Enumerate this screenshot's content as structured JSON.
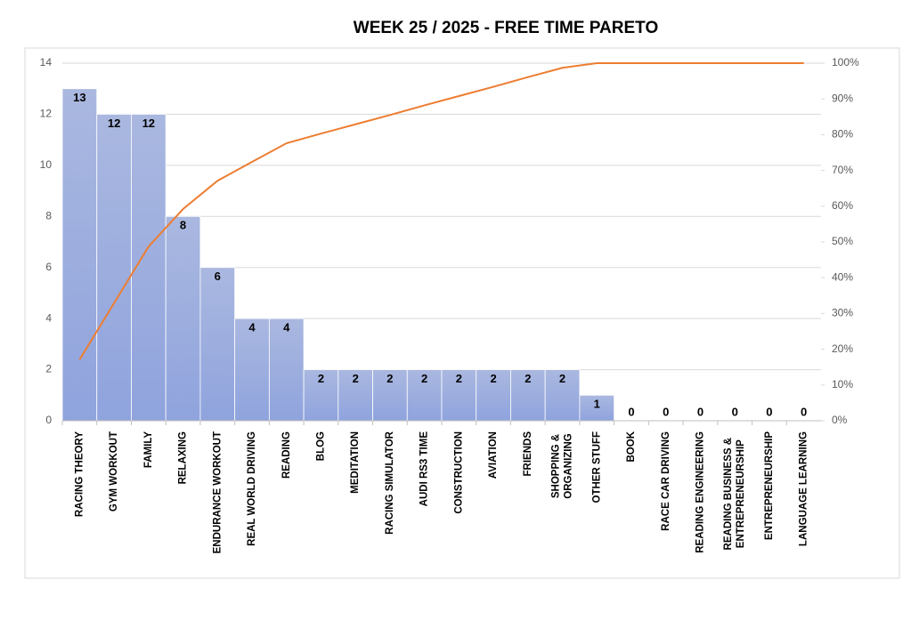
{
  "chart_data": {
    "type": "pareto",
    "title": "WEEK  25  / 2025  - FREE TIME PARETO",
    "categories": [
      "RACING THEORY",
      "GYM WORKOUT",
      "FAMILY",
      "RELAXING",
      "ENDURANCE WORKOUT",
      "REAL WORLD DRIVING",
      "READING",
      "BLOG",
      "MEDITATION",
      "RACING SIMULATOR",
      "AUDI RS3 TIME",
      "CONSTRUCTION",
      "AVIATION",
      "FRIENDS",
      "SHOPPING & ORGANIZING",
      "OTHER STUFF",
      "BOOK",
      "RACE CAR DRIVING",
      "READING ENGINEERING",
      "READING BUSINESS & ENTREPRENEURSHIP",
      "ENTREPRENEURSHIP",
      "LANGUAGE LEARNING"
    ],
    "series": [
      {
        "type": "bar",
        "color": "#98aadf",
        "values": [
          13,
          12,
          12,
          8,
          6,
          4,
          4,
          2,
          2,
          2,
          2,
          2,
          2,
          2,
          2,
          1,
          0,
          0,
          0,
          0,
          0,
          0
        ]
      },
      {
        "type": "line",
        "axis": "y2",
        "color": "#ed7d31",
        "values": [
          17.1,
          32.9,
          48.7,
          59.2,
          67.1,
          72.4,
          77.6,
          80.3,
          82.9,
          85.5,
          88.2,
          90.8,
          93.4,
          96.1,
          98.7,
          100,
          100,
          100,
          100,
          100,
          100,
          100
        ]
      }
    ],
    "ylim": [
      0,
      14
    ],
    "yticks": [
      0,
      2,
      4,
      6,
      8,
      10,
      12,
      14
    ],
    "y2lim": [
      0,
      100
    ],
    "y2ticks": [
      {
        "value": 0,
        "label": "0%"
      },
      {
        "value": 10,
        "label": "10%"
      },
      {
        "value": 20,
        "label": "20%"
      },
      {
        "value": 30,
        "label": "30%"
      },
      {
        "value": 40,
        "label": "40%"
      },
      {
        "value": 50,
        "label": "50%"
      },
      {
        "value": 60,
        "label": "60%"
      },
      {
        "value": 70,
        "label": "70%"
      },
      {
        "value": 80,
        "label": "80%"
      },
      {
        "value": 90,
        "label": "90%"
      },
      {
        "value": 100,
        "label": "100%"
      }
    ],
    "grid": true
  }
}
